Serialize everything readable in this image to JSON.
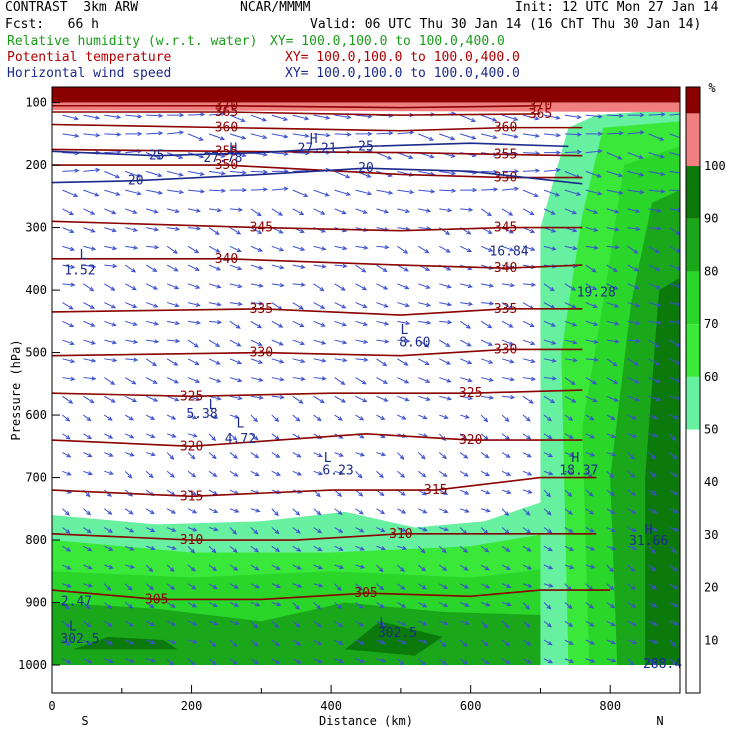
{
  "header": {
    "model": "CONTRAST  3km ARW",
    "org": "NCAR/MMMM",
    "init": "Init: 12 UTC Mon 27 Jan 14",
    "fcst": "Fcst:   66 h",
    "valid": "Valid: 06 UTC Thu 30 Jan 14 (16 ChT Thu 30 Jan 14)",
    "fields": [
      {
        "name": "Relative humidity (w.r.t. water)",
        "xy": "XY= 100.0,100.0 to 100.0,400.0",
        "color": "#1a9c1a"
      },
      {
        "name": "Potential temperature",
        "xy": "XY= 100.0,100.0 to 100.0,400.0",
        "color": "#b00000"
      },
      {
        "name": "Horizontal wind speed",
        "xy": "XY= 100.0,100.0 to 100.0,400.0",
        "color": "#1c2a8c"
      }
    ]
  },
  "chart_data": {
    "type": "heatmap",
    "xlabel": "Distance (km)",
    "ylabel": "Pressure (hPa)",
    "xlim": [
      0,
      900
    ],
    "ylim": [
      1000,
      75
    ],
    "x_ticks": [
      0,
      200,
      400,
      600,
      800
    ],
    "y_ticks": [
      100,
      200,
      300,
      400,
      500,
      600,
      700,
      800,
      900,
      1000
    ],
    "x_end_labels": {
      "left": "S",
      "right": "N"
    },
    "colorbar": {
      "unit": "%",
      "ticks": [
        10,
        20,
        30,
        40,
        50,
        60,
        70,
        80,
        90,
        100
      ],
      "bands": [
        {
          "from": 0,
          "to": 50,
          "color": "#ffffff"
        },
        {
          "from": 50,
          "to": 60,
          "color": "#66f0a0"
        },
        {
          "from": 60,
          "to": 70,
          "color": "#39e839"
        },
        {
          "from": 70,
          "to": 80,
          "color": "#2ad62a"
        },
        {
          "from": 80,
          "to": 90,
          "color": "#1aa81a"
        },
        {
          "from": 90,
          "to": 100,
          "color": "#0b7a0b"
        },
        {
          "from": 100,
          "to": 110,
          "color": "#f08080"
        },
        {
          "from": 110,
          "to": 115,
          "color": "#8b0000"
        }
      ]
    },
    "theta_contours": [
      {
        "level": "305",
        "points": [
          [
            0,
            880
          ],
          [
            150,
            895
          ],
          [
            300,
            895
          ],
          [
            450,
            885
          ],
          [
            600,
            890
          ],
          [
            700,
            880
          ],
          [
            800,
            880
          ]
        ]
      },
      {
        "level": "310",
        "points": [
          [
            0,
            790
          ],
          [
            200,
            800
          ],
          [
            350,
            800
          ],
          [
            500,
            790
          ],
          [
            650,
            790
          ],
          [
            780,
            790
          ]
        ]
      },
      {
        "level": "315",
        "points": [
          [
            0,
            720
          ],
          [
            200,
            730
          ],
          [
            400,
            720
          ],
          [
            550,
            720
          ],
          [
            700,
            700
          ],
          [
            780,
            700
          ]
        ]
      },
      {
        "level": "320",
        "points": [
          [
            0,
            640
          ],
          [
            200,
            650
          ],
          [
            450,
            630
          ],
          [
            600,
            640
          ],
          [
            760,
            640
          ]
        ]
      },
      {
        "level": "325",
        "points": [
          [
            0,
            565
          ],
          [
            200,
            570
          ],
          [
            400,
            565
          ],
          [
            600,
            565
          ],
          [
            760,
            560
          ]
        ]
      },
      {
        "level": "330",
        "points": [
          [
            0,
            505
          ],
          [
            300,
            500
          ],
          [
            500,
            505
          ],
          [
            650,
            495
          ],
          [
            760,
            495
          ]
        ]
      },
      {
        "level": "335",
        "points": [
          [
            0,
            435
          ],
          [
            300,
            430
          ],
          [
            500,
            440
          ],
          [
            650,
            430
          ],
          [
            760,
            430
          ]
        ]
      },
      {
        "level": "340",
        "points": [
          [
            0,
            350
          ],
          [
            250,
            350
          ],
          [
            500,
            360
          ],
          [
            650,
            365
          ],
          [
            760,
            360
          ]
        ]
      },
      {
        "level": "345",
        "points": [
          [
            0,
            290
          ],
          [
            300,
            300
          ],
          [
            500,
            305
          ],
          [
            650,
            300
          ],
          [
            760,
            300
          ]
        ]
      },
      {
        "level": "350",
        "points": [
          [
            0,
            200
          ],
          [
            250,
            200
          ],
          [
            500,
            215
          ],
          [
            650,
            220
          ],
          [
            760,
            220
          ]
        ]
      },
      {
        "level": "355",
        "points": [
          [
            0,
            175
          ],
          [
            250,
            178
          ],
          [
            500,
            180
          ],
          [
            650,
            183
          ],
          [
            760,
            185
          ]
        ]
      },
      {
        "level": "360",
        "points": [
          [
            0,
            135
          ],
          [
            250,
            140
          ],
          [
            500,
            145
          ],
          [
            650,
            140
          ],
          [
            760,
            140
          ]
        ]
      },
      {
        "level": "365",
        "points": [
          [
            0,
            115
          ],
          [
            250,
            115
          ],
          [
            500,
            120
          ],
          [
            700,
            118
          ]
        ]
      },
      {
        "level": "370",
        "points": [
          [
            0,
            105
          ],
          [
            250,
            105
          ],
          [
            500,
            108
          ],
          [
            700,
            105
          ]
        ]
      }
    ],
    "wind_contours": [
      {
        "level": "25",
        "points": [
          [
            0,
            178
          ],
          [
            150,
            185
          ],
          [
            300,
            180
          ],
          [
            450,
            170
          ],
          [
            600,
            165
          ],
          [
            740,
            170
          ]
        ]
      },
      {
        "level": "20",
        "points": [
          [
            0,
            228
          ],
          [
            120,
            225
          ],
          [
            300,
            215
          ],
          [
            450,
            205
          ],
          [
            600,
            210
          ],
          [
            760,
            230
          ]
        ]
      }
    ],
    "labels": [
      {
        "text": "L",
        "x": 45,
        "y": 350
      },
      {
        "text": "1.52",
        "x": 40,
        "y": 375
      },
      {
        "text": "L",
        "x": 270,
        "y": 620
      },
      {
        "text": "4.72",
        "x": 270,
        "y": 645
      },
      {
        "text": "L",
        "x": 230,
        "y": 590
      },
      {
        "text": "5.38",
        "x": 215,
        "y": 605
      },
      {
        "text": "L",
        "x": 505,
        "y": 470
      },
      {
        "text": "8.60",
        "x": 520,
        "y": 490
      },
      {
        "text": "L",
        "x": 395,
        "y": 675
      },
      {
        "text": "6.23",
        "x": 410,
        "y": 695
      },
      {
        "text": "H",
        "x": 260,
        "y": 180
      },
      {
        "text": "27.78",
        "x": 245,
        "y": 195
      },
      {
        "text": "H",
        "x": 375,
        "y": 165
      },
      {
        "text": "27.21",
        "x": 380,
        "y": 180
      },
      {
        "text": "16.84",
        "x": 655,
        "y": 345
      },
      {
        "text": "19.28",
        "x": 780,
        "y": 410
      },
      {
        "text": "H",
        "x": 750,
        "y": 675
      },
      {
        "text": "18.37",
        "x": 755,
        "y": 695
      },
      {
        "text": "H",
        "x": 855,
        "y": 790
      },
      {
        "text": "31.66",
        "x": 855,
        "y": 808
      },
      {
        "text": "2.47",
        "x": 35,
        "y": 905
      },
      {
        "text": "L",
        "x": 30,
        "y": 945
      },
      {
        "text": "302.5",
        "x": 40,
        "y": 965
      },
      {
        "text": "L",
        "x": 475,
        "y": 940
      },
      {
        "text": "302.5",
        "x": 495,
        "y": 955
      },
      {
        "text": "288.4",
        "x": 875,
        "y": 1005
      }
    ]
  }
}
